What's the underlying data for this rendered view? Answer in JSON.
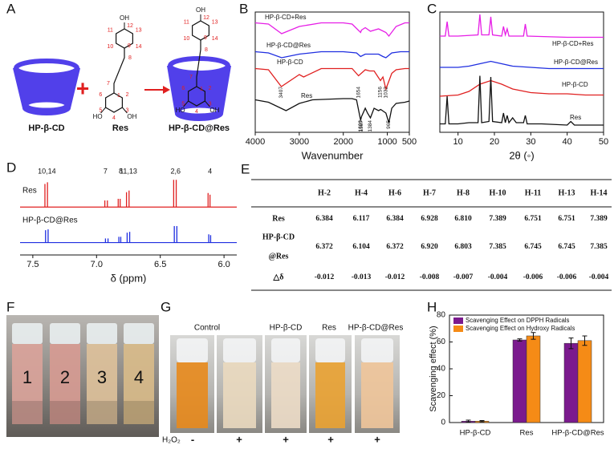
{
  "panels": {
    "a": {
      "label": "A",
      "host": "HP-β-CD",
      "plus": "+",
      "guest": "Res",
      "product": "HP-β-CD@Res",
      "oh": "OH",
      "ho": "HO",
      "atoms": [
        "1",
        "2",
        "3",
        "4",
        "5",
        "6",
        "7",
        "8",
        "9",
        "10",
        "11",
        "12",
        "13",
        "14"
      ]
    },
    "e": {
      "label": "E",
      "columns": [
        "H-2",
        "H-4",
        "H-6",
        "H-7",
        "H-8",
        "H-10",
        "H-11",
        "H-13",
        "H-14"
      ],
      "rows": [
        {
          "label": [
            "Res"
          ],
          "cells": [
            "6.384",
            "6.117",
            "6.384",
            "6.928",
            "6.810",
            "7.389",
            "6.751",
            "6.751",
            "7.389"
          ]
        },
        {
          "label": [
            "HP-β-CD",
            "@Res"
          ],
          "cells": [
            "6.372",
            "6.104",
            "6.372",
            "6.920",
            "6.803",
            "7.385",
            "6.745",
            "6.745",
            "7.385"
          ]
        },
        {
          "label": [
            "△δ"
          ],
          "cells": [
            "-0.012",
            "-0.013",
            "-0.012",
            "-0.008",
            "-0.007",
            "-0.004",
            "-0.006",
            "-0.006",
            "-0.004"
          ]
        }
      ]
    },
    "f": {
      "label": "F",
      "cuvettes": [
        "1",
        "2",
        "3",
        "4"
      ]
    },
    "g": {
      "label": "G",
      "samples": [
        "Control",
        "HP-β-CD",
        "Res",
        "HP-β-CD@Res"
      ],
      "reagent": "H₂O₂",
      "signs": [
        "-",
        "+",
        "+",
        "+",
        "+"
      ]
    }
  },
  "chart_data": [
    {
      "type": "line",
      "label": "B",
      "xlabel": "Wavenumber",
      "xlim": [
        4000,
        500
      ],
      "xticks": [
        4000,
        3000,
        2000,
        1000,
        500
      ],
      "ylim": [
        0,
        100
      ],
      "series": [
        {
          "name": "HP-β-CD+Res",
          "color": "#e61ee6",
          "x": [
            4000,
            3700,
            3400,
            3000,
            2500,
            2000,
            1800,
            1606,
            1587,
            1500,
            1384,
            1200,
            1032,
            965,
            800,
            600,
            500
          ],
          "values": [
            91,
            90,
            82,
            88,
            91,
            91,
            90,
            83,
            85,
            87,
            84,
            86,
            83,
            80,
            88,
            91,
            91
          ]
        },
        {
          "name": "HP-β-CD@Res",
          "color": "#1f2ee0",
          "x": [
            4000,
            3700,
            3400,
            3000,
            2500,
            2000,
            1700,
            1606,
            1500,
            1400,
            1200,
            1100,
            1032,
            900,
            700,
            500
          ],
          "values": [
            67,
            66,
            62,
            65,
            67,
            67,
            66,
            63,
            65,
            65,
            65,
            63,
            62,
            66,
            67,
            67
          ]
        },
        {
          "name": "HP-β-CD",
          "color": "#e02020",
          "x": [
            4000,
            3700,
            3407,
            3000,
            2900,
            2500,
            2000,
            1800,
            1654,
            1500,
            1400,
            1300,
            1156,
            1100,
            1032,
            900,
            800,
            600,
            500
          ],
          "values": [
            53,
            52,
            38,
            48,
            46,
            53,
            53,
            53,
            47,
            52,
            51,
            51,
            43,
            46,
            36,
            49,
            52,
            53,
            53
          ],
          "peaks": [
            3407,
            1654,
            1156,
            1032
          ]
        },
        {
          "name": "Res",
          "color": "#111111",
          "x": [
            4000,
            3700,
            3300,
            3000,
            2700,
            2000,
            1800,
            1700,
            1606,
            1587,
            1500,
            1450,
            1384,
            1300,
            1200,
            1150,
            1032,
            965,
            900,
            800,
            600,
            500
          ],
          "values": [
            27,
            25,
            18,
            24,
            27,
            28,
            28,
            27,
            10,
            13,
            20,
            16,
            12,
            20,
            18,
            19,
            16,
            8,
            20,
            24,
            25,
            26
          ],
          "peaks": [
            1606,
            1587,
            1384,
            965
          ]
        }
      ]
    },
    {
      "type": "line",
      "label": "C",
      "xlabel": "2θ (◦)",
      "xlim": [
        5,
        50
      ],
      "xticks": [
        10,
        20,
        30,
        40,
        50
      ],
      "ylim": [
        0,
        100
      ],
      "series": [
        {
          "name": "HP-β-CD+Res",
          "color": "#e61ee6",
          "x": [
            5,
            6.5,
            7,
            7.5,
            10,
            15.5,
            16,
            16.5,
            18.5,
            19,
            19.5,
            22,
            22.5,
            23,
            23.5,
            24,
            28,
            28.5,
            29,
            40,
            50
          ],
          "values": [
            80,
            80,
            92,
            80,
            80,
            81,
            98,
            81,
            81,
            96,
            81,
            80,
            88,
            81,
            86,
            80,
            80,
            90,
            80,
            79,
            79
          ]
        },
        {
          "name": "HP-β-CD@Res",
          "color": "#1f2ee0",
          "x": [
            5,
            10,
            13,
            16,
            19,
            22,
            25,
            30,
            35,
            40,
            45,
            50
          ],
          "values": [
            54,
            54,
            55,
            57,
            59,
            57,
            55,
            54,
            53,
            53,
            53,
            53
          ]
        },
        {
          "name": "HP-β-CD",
          "color": "#e02020",
          "x": [
            5,
            10,
            13,
            16,
            19,
            22,
            25,
            30,
            35,
            40,
            45,
            50
          ],
          "values": [
            30,
            31,
            34,
            40,
            43,
            40,
            36,
            33,
            32,
            32,
            31,
            31
          ]
        },
        {
          "name": "Res",
          "color": "#111111",
          "x": [
            5,
            6.5,
            7,
            7.5,
            10,
            13,
            15.5,
            16,
            16.5,
            18.5,
            19,
            19.5,
            22,
            22.5,
            23,
            23.5,
            24,
            25,
            26,
            28,
            28.5,
            29,
            33,
            40,
            41,
            42,
            50
          ],
          "values": [
            7,
            7,
            30,
            7,
            7,
            8,
            8,
            47,
            8,
            9,
            46,
            9,
            8,
            16,
            8,
            14,
            8,
            12,
            8,
            8,
            14,
            7,
            7,
            6,
            9,
            6,
            6
          ]
        }
      ]
    },
    {
      "type": "spectrum",
      "label": "D",
      "xlabel": "δ (ppm)",
      "xlim": [
        7.6,
        5.9
      ],
      "xticks": [
        7.5,
        {
          "value": 7,
          "label": "7.0"
        },
        6.5,
        {
          "value": 6,
          "label": "6.0"
        }
      ],
      "ylim": [
        0,
        100
      ],
      "peak_labels": [
        "10,14",
        "7",
        "8",
        "11,13",
        "2,6",
        "4"
      ],
      "series": [
        {
          "name": "Res",
          "color": "#e02020",
          "baseline": 58,
          "peaks": [
            7.405,
            7.385,
            6.935,
            6.915,
            6.83,
            6.815,
            6.765,
            6.745,
            6.395,
            6.375,
            6.125,
            6.11
          ],
          "heights": [
            28,
            30,
            8,
            8,
            10,
            10,
            18,
            20,
            33,
            33,
            17,
            15
          ]
        },
        {
          "name": "HP-β-CD@Res",
          "color": "#1f2ee0",
          "baseline": 15,
          "peaks": [
            7.4,
            7.38,
            6.93,
            6.91,
            6.825,
            6.81,
            6.76,
            6.74,
            6.39,
            6.37,
            6.12,
            6.105
          ],
          "heights": [
            15,
            16,
            5,
            5,
            7,
            7,
            12,
            13,
            20,
            20,
            10,
            9
          ]
        }
      ]
    },
    {
      "type": "bar",
      "label": "H",
      "ylabel": "Scavenging effect (%)",
      "categories": [
        "HP-β-CD",
        "Res",
        "HP-β-CD@Res"
      ],
      "ylim": [
        0,
        80
      ],
      "yticks": [
        0,
        20,
        40,
        60,
        80
      ],
      "legend": "upper left",
      "series": [
        {
          "name": "Scavenging Effect on DPPH Radicals",
          "color": "#7b1a8e",
          "values": [
            1,
            61.5,
            59
          ],
          "errors": [
            0.8,
            0.8,
            4
          ]
        },
        {
          "name": "Scavenging Effect on Hydroxy Radicals",
          "color": "#f58b16",
          "values": [
            1,
            64.5,
            61
          ],
          "errors": [
            0.5,
            2.5,
            3.5
          ]
        }
      ]
    }
  ]
}
